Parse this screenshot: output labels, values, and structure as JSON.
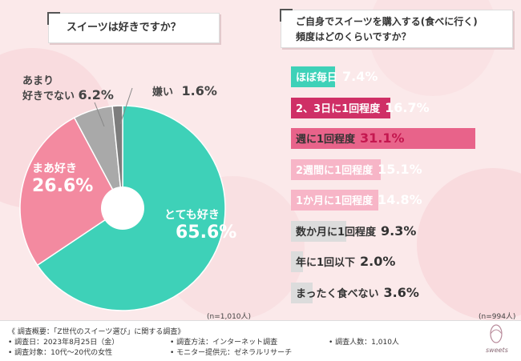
{
  "colors": {
    "teal": "#3ed1b8",
    "pink": "#f38aa0",
    "gray": "#a9a9a9",
    "darkgray": "#7d7d7d",
    "darkpink": "#cf2f66",
    "hotpink": "#e8638a",
    "lightpink": "#f7b5c7",
    "lightgray": "#dcdcdc",
    "bg": "#fbe9ea"
  },
  "left": {
    "title": "スイーツは好きですか？",
    "note": "(n=1,010人)"
  },
  "right": {
    "title_line1": "ご自身でスイーツを購入する(食べに行く)",
    "title_line2": "頻度はどのくらいですか？",
    "note": "(n=994人)"
  },
  "chart_data": [
    {
      "type": "pie",
      "title": "スイーツは好きですか？",
      "categories": [
        "とても好き",
        "まあ好き",
        "あまり好きでない",
        "嫌い"
      ],
      "values": [
        65.6,
        26.6,
        6.2,
        1.6
      ],
      "value_labels": [
        "65.6%",
        "26.6%",
        "6.2%",
        "1.6%"
      ]
    },
    {
      "type": "bar",
      "orientation": "horizontal",
      "title": "ご自身でスイーツを購入する(食べに行く)頻度はどのくらいですか？",
      "categories": [
        "ほぼ毎日",
        "2、3日に1回程度",
        "週に1回程度",
        "2週間に1回程度",
        "1か月に1回程度",
        "数か月に1回程度",
        "年に1回以下",
        "まったく食べない"
      ],
      "values": [
        7.4,
        16.7,
        31.1,
        15.1,
        14.8,
        9.3,
        2.0,
        3.6
      ],
      "value_labels": [
        "7.4%",
        "16.7%",
        "31.1%",
        "15.1%",
        "14.8%",
        "9.3%",
        "2.0%",
        "3.6%"
      ]
    }
  ],
  "pie_labels": {
    "a_cat": "とても好き",
    "a_val": "65.6%",
    "b_cat": "まあ好き",
    "b_val": "26.6%",
    "c_cat1": "あまり",
    "c_cat2": "好きでない",
    "c_val": "6.2%",
    "d_cat": "嫌い",
    "d_val": "1.6%"
  },
  "footer": {
    "overview": "《 調査概要：「Z世代のスイーツ選び」に関する調査》",
    "date": "• 調査日：2023年8月25日（金）",
    "target": "• 調査対象：10代〜20代の女性",
    "method": "• 調査方法：インターネット調査",
    "provider": "• モニター提供元：ゼネラルリサーチ",
    "count": "• 調査人数：1,010人",
    "logo_text": "sweets"
  }
}
